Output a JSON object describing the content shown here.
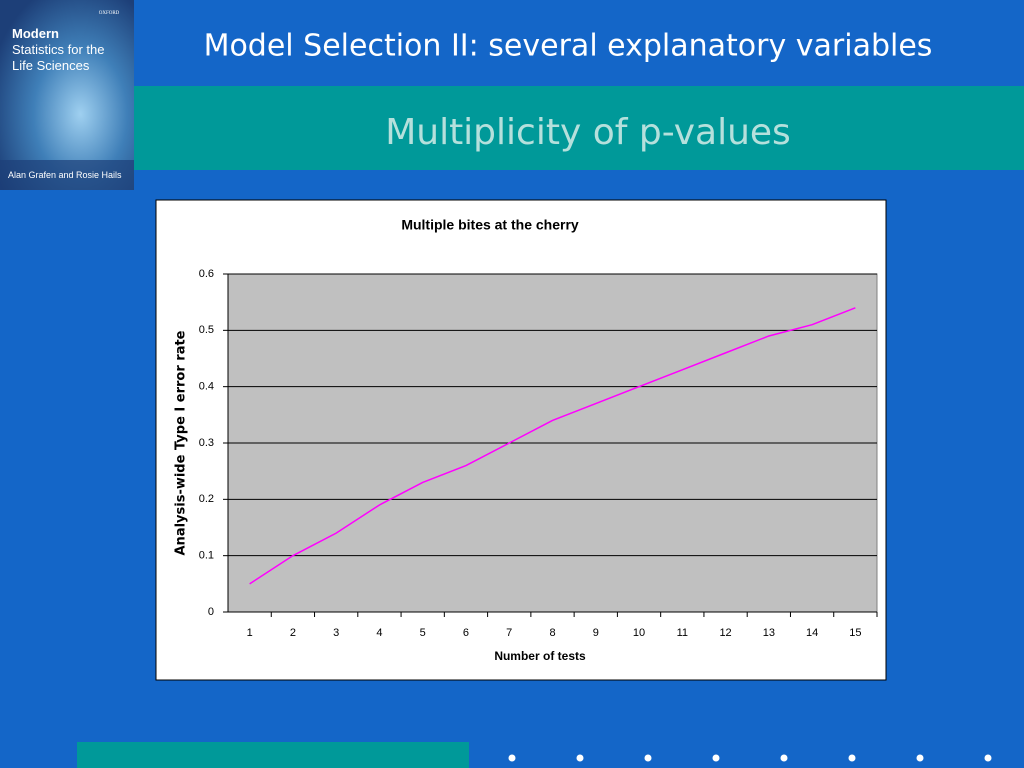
{
  "slide": {
    "header": "Model Selection II: several explanatory variables",
    "subtitle": "Multiplicity of p-values",
    "book": {
      "publisher": "OXFORD",
      "title_lines": [
        "Modern",
        "Statistics for the",
        "Life Sciences"
      ],
      "authors": "Alan Grafen and Rosie Hails"
    }
  },
  "chart_data": {
    "type": "line",
    "title": "Multiple bites at the cherry",
    "x_label": "Number of tests",
    "y_label": "Analysis-wide Type I error rate",
    "categories": [
      "1",
      "2",
      "3",
      "4",
      "5",
      "6",
      "7",
      "8",
      "9",
      "10",
      "11",
      "12",
      "13",
      "14",
      "15"
    ],
    "values": [
      0.05,
      0.1,
      0.14,
      0.19,
      0.23,
      0.26,
      0.3,
      0.34,
      0.37,
      0.4,
      0.43,
      0.46,
      0.49,
      0.51,
      0.54
    ],
    "color": "#ff00ff",
    "ylim": [
      0,
      0.6
    ],
    "yticks": [
      0,
      0.1,
      0.2,
      0.3,
      0.4,
      0.5,
      0.6
    ],
    "grid": true
  }
}
